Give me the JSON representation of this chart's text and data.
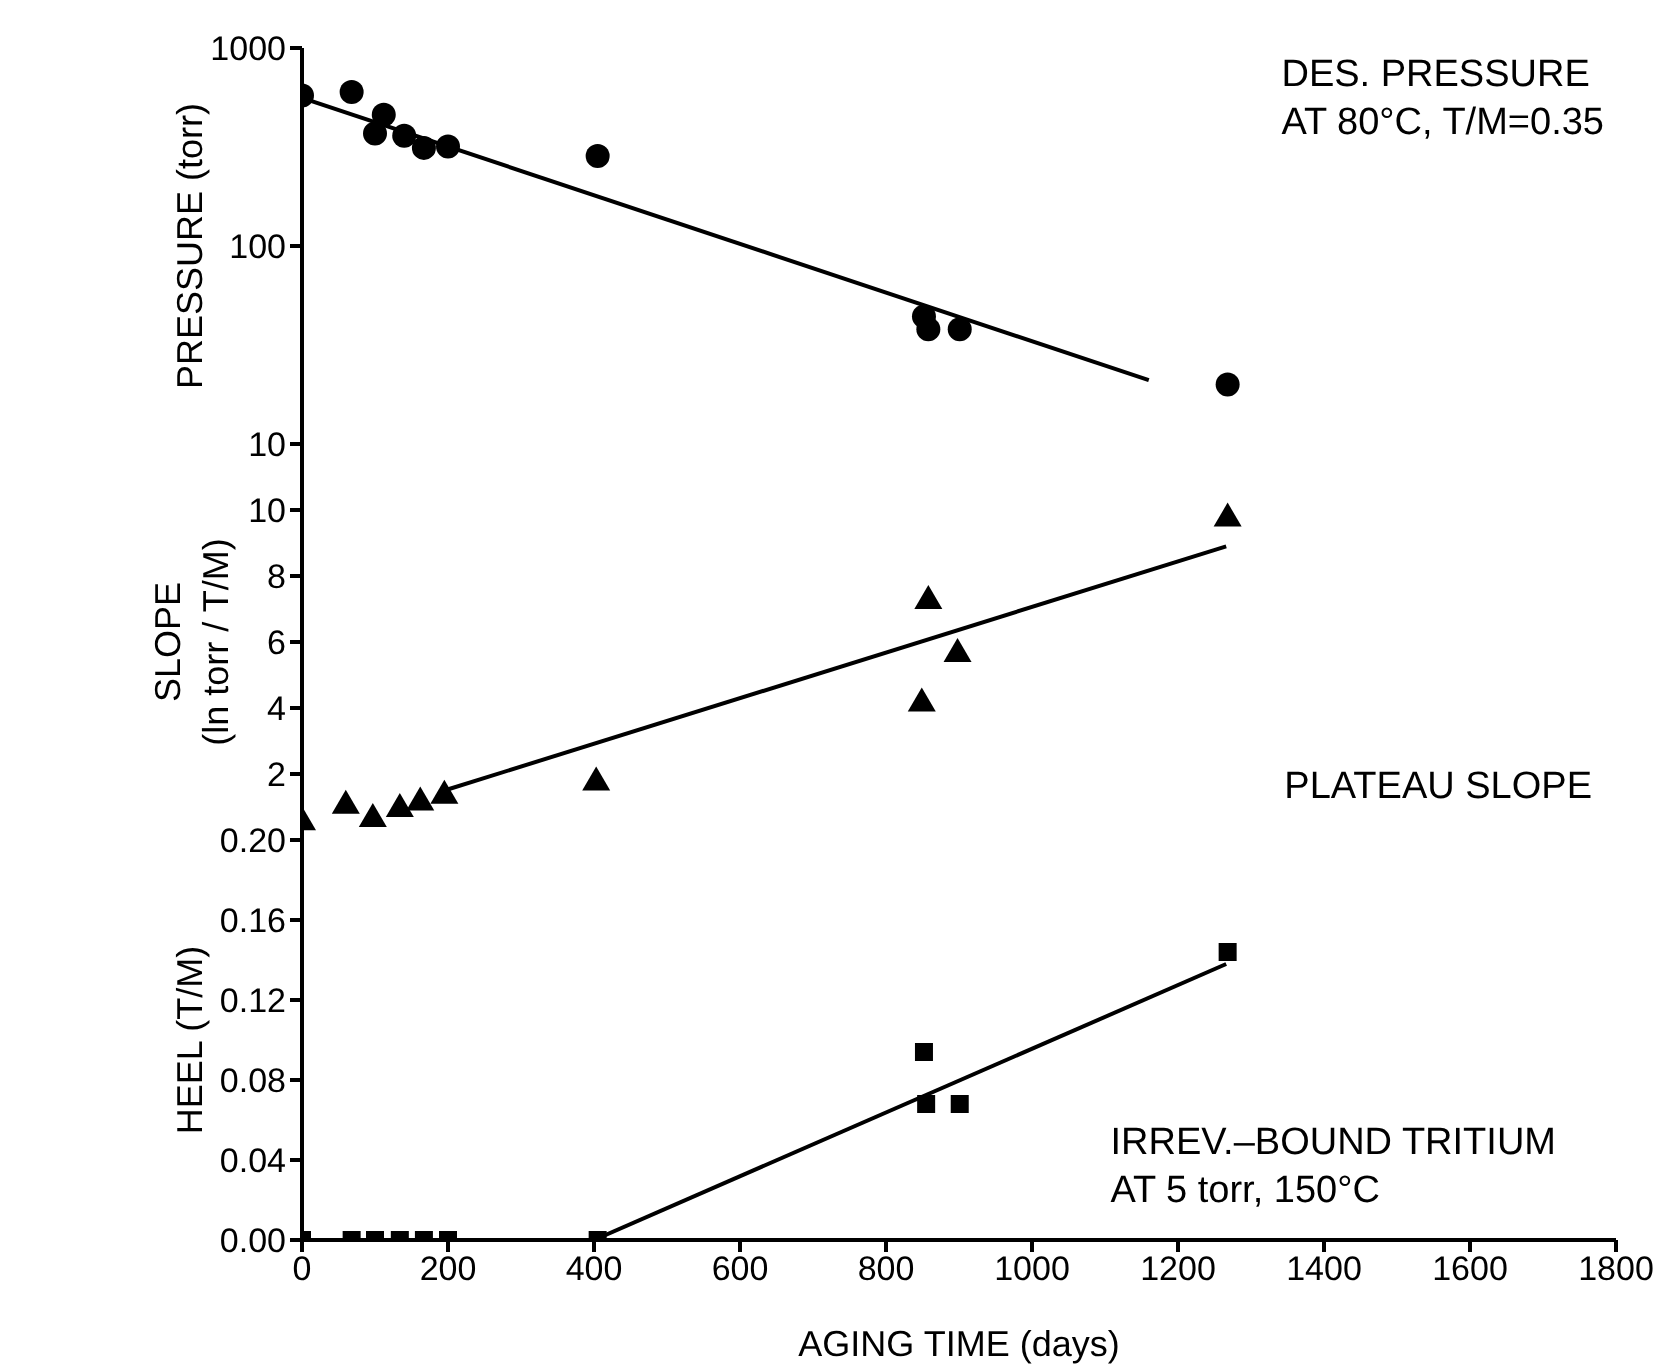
{
  "chart_data": [
    {
      "type": "scatter",
      "ylabel": "PRESSURE (torr)",
      "annotations": [
        "DES. PRESSURE\nAT 80°C, T/M=0.35"
      ],
      "log": "y",
      "xlim": [
        0,
        1800
      ],
      "xticks": [
        0,
        200,
        400,
        600,
        800,
        1000,
        1200,
        1400,
        1600,
        1800
      ],
      "ylim": [
        10,
        1000
      ],
      "yticks": [
        10,
        100,
        1000
      ],
      "tick_labels": "y",
      "grid": false,
      "legend": false,
      "series": [
        {
          "marker": "circle",
          "color": "#000000",
          "x": [
            0,
            68,
            100,
            112,
            140,
            167,
            200,
            405,
            852,
            858,
            901,
            1268
          ],
          "values": [
            575,
            600,
            370,
            460,
            360,
            313,
            318,
            285,
            44,
            38,
            38,
            20
          ]
        },
        {
          "type": "line",
          "color": "#000000",
          "x": [
            0,
            1160
          ],
          "values": [
            560,
            21
          ]
        }
      ]
    },
    {
      "type": "scatter",
      "ylabel": "SLOPE\n(ln torr / T/M)",
      "annotations": [
        "PLATEAU SLOPE"
      ],
      "xlim": [
        0,
        1800
      ],
      "xticks": [
        0,
        200,
        400,
        600,
        800,
        1000,
        1200,
        1400,
        1600,
        1800
      ],
      "ylim": [
        0,
        12
      ],
      "yticks": [
        2,
        4,
        6,
        8,
        10
      ],
      "tick_labels": "y",
      "grid": false,
      "legend": false,
      "series": [
        {
          "marker": "triangle",
          "color": "#000000",
          "x": [
            0,
            60,
            97,
            134,
            162,
            195,
            403,
            849,
            858,
            898,
            1268
          ],
          "values": [
            0.6,
            1.1,
            0.7,
            1,
            1.2,
            1.4,
            1.8,
            4.2,
            7.3,
            5.7,
            9.8
          ]
        },
        {
          "type": "line",
          "color": "#000000",
          "x": [
            195,
            1266
          ],
          "values": [
            1.5,
            8.9
          ]
        }
      ]
    },
    {
      "type": "scatter",
      "ylabel": "HEEL (T/M)",
      "xlabel": "AGING TIME (days)",
      "annotations": [
        "IRREV.–BOUND TRITIUM\nAT 5 torr, 150°C"
      ],
      "xlim": [
        0,
        1800
      ],
      "xticks": [
        0,
        200,
        400,
        600,
        800,
        1000,
        1200,
        1400,
        1600,
        1800
      ],
      "ylim": [
        0,
        0.2
      ],
      "yticks": [
        {
          "value": 0,
          "label": "0.00"
        },
        {
          "value": 0.04,
          "label": "0.04"
        },
        {
          "value": 0.08,
          "label": "0.08"
        },
        {
          "value": 0.12,
          "label": "0.12"
        },
        {
          "value": 0.16,
          "label": "0.16"
        },
        {
          "value": 0.2,
          "label": "0.20"
        }
      ],
      "grid": false,
      "legend": false,
      "series": [
        {
          "marker": "square",
          "color": "#000000",
          "x": [
            0,
            68,
            100,
            134,
            167,
            200,
            405,
            852,
            855,
            901,
            1268
          ],
          "values": [
            0,
            0,
            0,
            0,
            0,
            0,
            0,
            0.094,
            0.068,
            0.068,
            0.144
          ]
        },
        {
          "type": "line",
          "color": "#000000",
          "x": [
            400,
            1266
          ],
          "values": [
            0,
            0.138
          ]
        }
      ]
    }
  ]
}
